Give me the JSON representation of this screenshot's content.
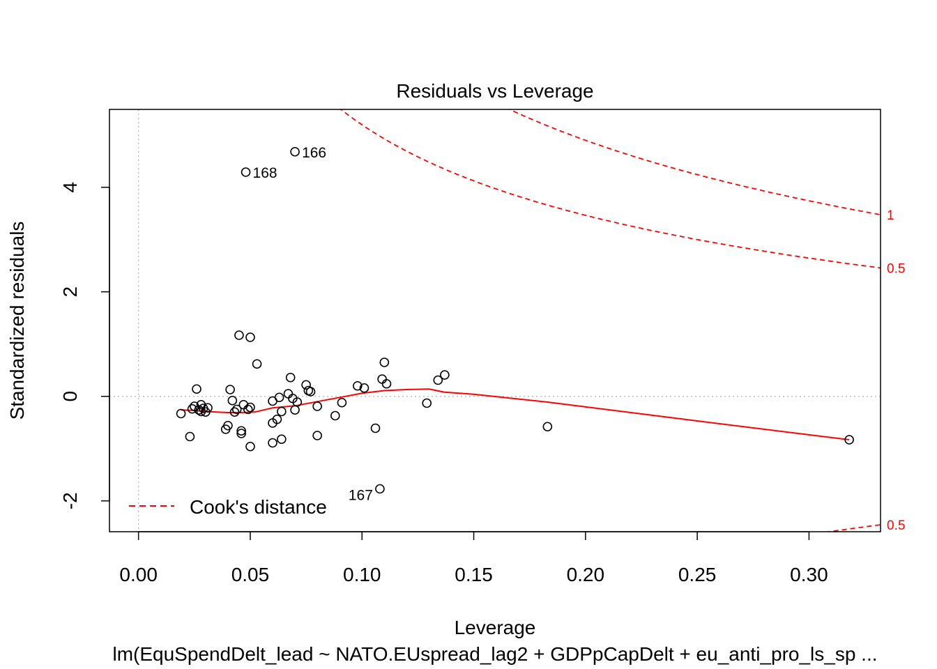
{
  "chart_data": {
    "type": "scatter",
    "title": "Residuals vs Leverage",
    "xlabel": "Leverage",
    "ylabel": "Standardized residuals",
    "subtitle": "lm(EquSpendDelt_lead ~ NATO.EUspread_lag2 + GDPpCapDelt + eu_anti_pro_ls_sp ...",
    "xlim": [
      -0.013,
      0.332
    ],
    "ylim": [
      -2.59,
      5.49
    ],
    "x_ticks": [
      0.0,
      0.05,
      0.1,
      0.15,
      0.2,
      0.25,
      0.3
    ],
    "x_tick_labels": [
      "0.00",
      "0.05",
      "0.10",
      "0.15",
      "0.20",
      "0.25",
      "0.30"
    ],
    "y_ticks": [
      -2,
      0,
      2,
      4
    ],
    "y_tick_labels": [
      "-2",
      "0",
      "2",
      "4"
    ],
    "reference_lines": {
      "horizontal_y": 0,
      "vertical_x": 0,
      "color": "#bebebe",
      "style": "dotted"
    },
    "points": [
      [
        0.019,
        -0.33
      ],
      [
        0.023,
        -0.77
      ],
      [
        0.024,
        -0.24
      ],
      [
        0.025,
        -0.19
      ],
      [
        0.026,
        0.14
      ],
      [
        0.027,
        -0.26
      ],
      [
        0.028,
        -0.29
      ],
      [
        0.028,
        -0.16
      ],
      [
        0.029,
        -0.23
      ],
      [
        0.03,
        -0.3
      ],
      [
        0.031,
        -0.22
      ],
      [
        0.039,
        -0.63
      ],
      [
        0.04,
        -0.56
      ],
      [
        0.041,
        0.13
      ],
      [
        0.042,
        -0.08
      ],
      [
        0.043,
        -0.3
      ],
      [
        0.044,
        -0.25
      ],
      [
        0.045,
        1.17
      ],
      [
        0.046,
        -0.66
      ],
      [
        0.046,
        -0.71
      ],
      [
        0.047,
        -0.16
      ],
      [
        0.048,
        4.29
      ],
      [
        0.049,
        -0.25
      ],
      [
        0.05,
        1.13
      ],
      [
        0.05,
        -0.21
      ],
      [
        0.05,
        -0.96
      ],
      [
        0.053,
        0.62
      ],
      [
        0.06,
        -0.09
      ],
      [
        0.06,
        -0.51
      ],
      [
        0.06,
        -0.89
      ],
      [
        0.062,
        -0.44
      ],
      [
        0.063,
        -0.02
      ],
      [
        0.064,
        -0.29
      ],
      [
        0.064,
        -0.82
      ],
      [
        0.067,
        0.05
      ],
      [
        0.068,
        0.36
      ],
      [
        0.069,
        -0.04
      ],
      [
        0.07,
        4.68
      ],
      [
        0.07,
        -0.26
      ],
      [
        0.071,
        -0.11
      ],
      [
        0.075,
        0.22
      ],
      [
        0.076,
        0.11
      ],
      [
        0.077,
        0.09
      ],
      [
        0.08,
        -0.19
      ],
      [
        0.08,
        -0.75
      ],
      [
        0.088,
        -0.37
      ],
      [
        0.091,
        -0.12
      ],
      [
        0.098,
        0.2
      ],
      [
        0.101,
        0.16
      ],
      [
        0.106,
        -0.61
      ],
      [
        0.108,
        -1.77
      ],
      [
        0.109,
        0.33
      ],
      [
        0.11,
        0.65
      ],
      [
        0.111,
        0.24
      ],
      [
        0.129,
        -0.13
      ],
      [
        0.134,
        0.31
      ],
      [
        0.137,
        0.41
      ],
      [
        0.183,
        -0.58
      ],
      [
        0.318,
        -0.83
      ]
    ],
    "point_labels": [
      {
        "text": "166",
        "x": 0.07,
        "y": 4.68,
        "side": "right"
      },
      {
        "text": "168",
        "x": 0.048,
        "y": 4.29,
        "side": "right"
      },
      {
        "text": "167",
        "x": 0.108,
        "y": -1.77,
        "side": "left"
      }
    ],
    "smoother": {
      "color": "#ff0000",
      "x": [
        0.019,
        0.025,
        0.03,
        0.04,
        0.046,
        0.052,
        0.06,
        0.07,
        0.08,
        0.09,
        0.1,
        0.11,
        0.12,
        0.13,
        0.137,
        0.15,
        0.183,
        0.25,
        0.318
      ],
      "y": [
        -0.26,
        -0.27,
        -0.29,
        -0.31,
        -0.31,
        -0.3,
        -0.22,
        -0.18,
        -0.1,
        -0.02,
        0.06,
        0.11,
        0.13,
        0.14,
        0.08,
        0.04,
        -0.11,
        -0.47,
        -0.83
      ]
    },
    "cooks_distance": {
      "name": "Cook's distance",
      "color": "#ff0000",
      "style": "dashed",
      "params": 6,
      "levels": [
        0.5,
        1
      ],
      "contour_labels": [
        "1",
        "0.5",
        "0.5"
      ],
      "legend_position": "bottom-left"
    }
  }
}
